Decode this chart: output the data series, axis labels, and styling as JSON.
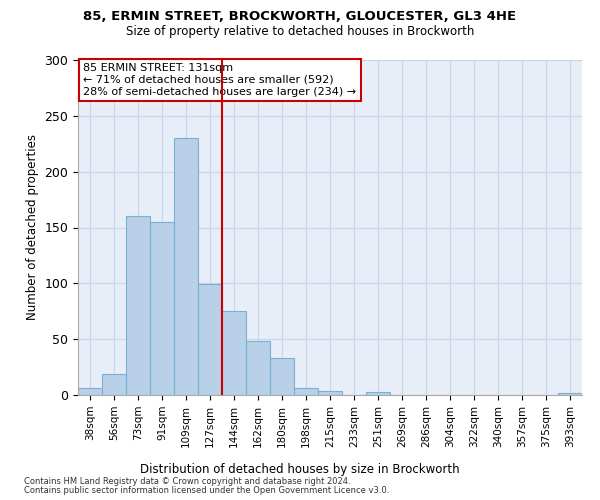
{
  "title1": "85, ERMIN STREET, BROCKWORTH, GLOUCESTER, GL3 4HE",
  "title2": "Size of property relative to detached houses in Brockworth",
  "xlabel": "Distribution of detached houses by size in Brockworth",
  "ylabel": "Number of detached properties",
  "categories": [
    "38sqm",
    "56sqm",
    "73sqm",
    "91sqm",
    "109sqm",
    "127sqm",
    "144sqm",
    "162sqm",
    "180sqm",
    "198sqm",
    "215sqm",
    "233sqm",
    "251sqm",
    "269sqm",
    "286sqm",
    "304sqm",
    "322sqm",
    "340sqm",
    "357sqm",
    "375sqm",
    "393sqm"
  ],
  "values": [
    6,
    19,
    160,
    155,
    230,
    99,
    75,
    48,
    33,
    6,
    4,
    0,
    3,
    0,
    0,
    0,
    0,
    0,
    0,
    0,
    2
  ],
  "bar_color": "#b8d0e8",
  "bar_edgecolor": "#7aafd4",
  "vline_x": 5.5,
  "vline_color": "#cc0000",
  "annotation_text": "85 ERMIN STREET: 131sqm\n← 71% of detached houses are smaller (592)\n28% of semi-detached houses are larger (234) →",
  "annotation_box_color": "#ffffff",
  "annotation_box_edgecolor": "#cc0000",
  "grid_color": "#c8d4e8",
  "background_color": "#e8eef8",
  "footer1": "Contains HM Land Registry data © Crown copyright and database right 2024.",
  "footer2": "Contains public sector information licensed under the Open Government Licence v3.0.",
  "ylim": [
    0,
    300
  ],
  "yticks": [
    0,
    50,
    100,
    150,
    200,
    250,
    300
  ]
}
